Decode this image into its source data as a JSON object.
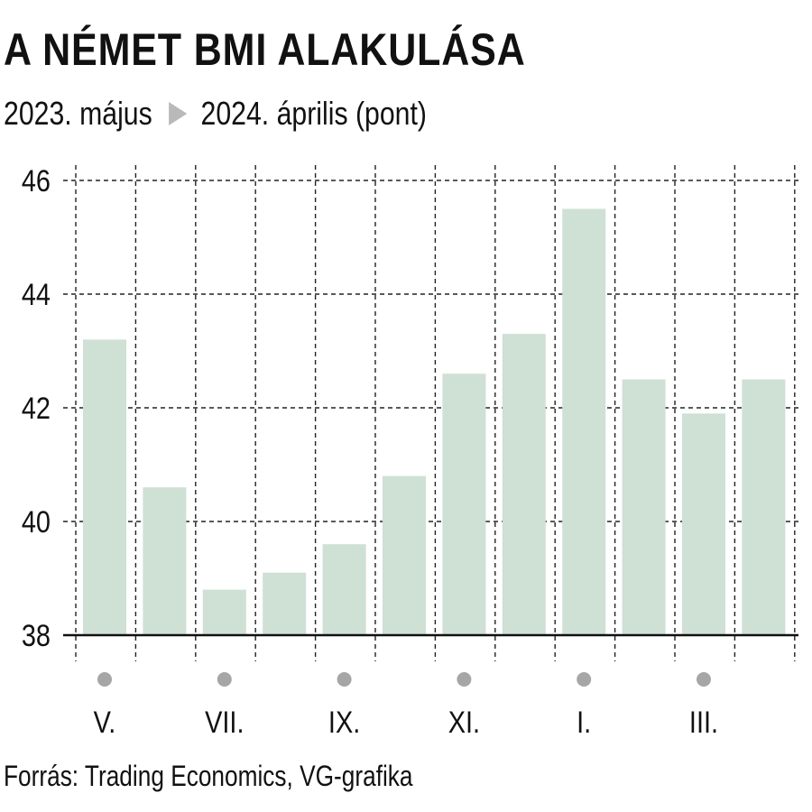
{
  "title": "A NÉMET BMI ALAKULÁSA",
  "subtitle_start": "2023. május",
  "subtitle_end": "2024. április (pont)",
  "source": "Forrás: Trading Economics, VG-grafika",
  "colors": {
    "bar": "#cfe0d5",
    "grid": "#222222",
    "dot": "#a6a6a6",
    "arrow": "#b9b9b9"
  },
  "chart_data": {
    "type": "bar",
    "title": "A NÉMET BMI ALAKULÁSA",
    "subtitle": "2023. május ▶ 2024. április (pont)",
    "categories": [
      "V.",
      "",
      "VII.",
      "",
      "IX.",
      "",
      "XI.",
      "",
      "I.",
      "",
      "III.",
      ""
    ],
    "values": [
      43.2,
      40.6,
      38.8,
      39.1,
      39.6,
      40.8,
      42.6,
      43.3,
      45.5,
      42.5,
      41.9,
      42.5
    ],
    "ylim": [
      38,
      46
    ],
    "yticks": [
      38,
      40,
      42,
      44,
      46
    ],
    "xlabel": "",
    "ylabel": "",
    "grid": true,
    "legend": "none"
  }
}
